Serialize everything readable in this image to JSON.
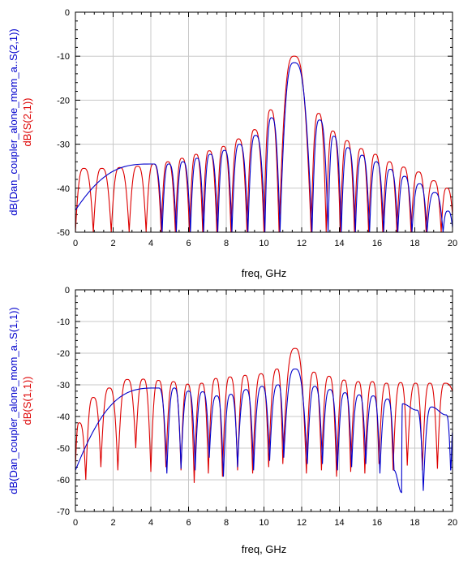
{
  "chart_data": [
    {
      "type": "line",
      "xlabel": "freq, GHz",
      "ylabels": [
        {
          "text": "dB(Dan_coupler_alone_mom_a..S(2,1))",
          "color": "#0000cc"
        },
        {
          "text": "dB(S(2,1))",
          "color": "#dd0000"
        }
      ],
      "xlim": [
        0,
        20
      ],
      "ylim": [
        -50,
        0
      ],
      "xticks": [
        0,
        2,
        4,
        6,
        8,
        10,
        12,
        14,
        16,
        18,
        20
      ],
      "yticks": [
        0,
        -10,
        -20,
        -30,
        -40,
        -50
      ],
      "grid": true,
      "series": [
        {
          "color": "#dd0000",
          "start": 0.0,
          "nulls": [
            0.0,
            0.95,
            1.9,
            2.85,
            3.75,
            4.55,
            5.3,
            6.05,
            6.75,
            7.5,
            8.25,
            9.1,
            10.0,
            10.8,
            12.5,
            13.3,
            14.05,
            14.8,
            15.55,
            16.3,
            17.05,
            17.8,
            18.6,
            19.4
          ],
          "peaks": [
            [
              0.45,
              -35.5
            ],
            [
              1.4,
              -35.5
            ],
            [
              2.35,
              -35.3
            ],
            [
              3.3,
              -35.0
            ],
            [
              4.15,
              -34.5
            ],
            [
              4.9,
              -34.0
            ],
            [
              5.65,
              -33.2
            ],
            [
              6.4,
              -32.3
            ],
            [
              7.1,
              -31.5
            ],
            [
              7.85,
              -30.5
            ],
            [
              8.65,
              -28.8
            ],
            [
              9.5,
              -26.7
            ],
            [
              10.35,
              -22.2
            ],
            [
              11.6,
              -10.0
            ],
            [
              12.9,
              -23.0
            ],
            [
              13.65,
              -27.0
            ],
            [
              14.4,
              -29.2
            ],
            [
              15.15,
              -31.0
            ],
            [
              15.9,
              -32.3
            ],
            [
              16.65,
              -34.0
            ],
            [
              17.4,
              -35.2
            ],
            [
              18.2,
              -36.3
            ],
            [
              19.0,
              -38.3
            ],
            [
              19.7,
              -40.0
            ]
          ],
          "end": -46.0
        },
        {
          "color": "#0000cc",
          "start": -45.0,
          "nulls": [
            4.6,
            5.35,
            6.1,
            6.8,
            7.55,
            8.3,
            9.15,
            10.05,
            10.85,
            12.55,
            13.4,
            14.1,
            14.85,
            15.6,
            16.35,
            17.1,
            17.85,
            18.65,
            19.5
          ],
          "peaks": [
            [
              4.15,
              -34.5
            ],
            [
              4.95,
              -34.5
            ],
            [
              5.7,
              -34.0
            ],
            [
              6.45,
              -33.2
            ],
            [
              7.15,
              -32.3
            ],
            [
              7.9,
              -31.4
            ],
            [
              8.7,
              -30.0
            ],
            [
              9.55,
              -28.0
            ],
            [
              10.4,
              -24.0
            ],
            [
              11.6,
              -11.5
            ],
            [
              12.95,
              -24.5
            ],
            [
              13.7,
              -28.2
            ],
            [
              14.45,
              -30.8
            ],
            [
              15.2,
              -32.5
            ],
            [
              15.95,
              -34.0
            ],
            [
              16.7,
              -35.7
            ],
            [
              17.45,
              -37.3
            ],
            [
              18.25,
              -39.0
            ],
            [
              19.05,
              -41.0
            ],
            [
              19.75,
              -45.2
            ]
          ],
          "end": -49.0
        }
      ]
    },
    {
      "type": "line",
      "xlabel": "freq, GHz",
      "ylabels": [
        {
          "text": "dB(Dan_coupler_alone_mom_a..S(1,1))",
          "color": "#0000cc"
        },
        {
          "text": "dB(S(1,1))",
          "color": "#dd0000"
        }
      ],
      "xlim": [
        0,
        20
      ],
      "ylim": [
        -70,
        0
      ],
      "xticks": [
        0,
        2,
        4,
        6,
        8,
        10,
        12,
        14,
        16,
        18,
        20
      ],
      "yticks": [
        0,
        -10,
        -20,
        -30,
        -40,
        -50,
        -60,
        -70
      ],
      "grid": true,
      "series": [
        {
          "color": "#dd0000",
          "start": -56.0,
          "nulls": [
            [
              0.55,
              -60.0
            ],
            [
              1.35,
              -56.0
            ],
            [
              2.25,
              -57.0
            ],
            [
              3.2,
              -50.0
            ],
            [
              4.0,
              -57.5
            ],
            [
              4.8,
              -56.0
            ],
            [
              5.6,
              -57.0
            ],
            [
              6.3,
              -61.0
            ],
            [
              7.05,
              -58.0
            ],
            [
              7.8,
              -59.0
            ],
            [
              8.6,
              -57.0
            ],
            [
              9.4,
              -58.0
            ],
            [
              10.25,
              -56.0
            ],
            [
              11.0,
              -55.0
            ],
            [
              12.25,
              -58.0
            ],
            [
              13.05,
              -57.0
            ],
            [
              13.85,
              -59.0
            ],
            [
              14.6,
              -57.5
            ],
            [
              15.35,
              -58.0
            ],
            [
              16.1,
              -55.0
            ],
            [
              16.85,
              -57.0
            ],
            [
              17.6,
              -55.5
            ],
            [
              18.4,
              -57.0
            ],
            [
              19.2,
              -56.5
            ]
          ],
          "peaks": [
            [
              0.2,
              -42.0
            ],
            [
              0.95,
              -34.0
            ],
            [
              1.8,
              -31.0
            ],
            [
              2.75,
              -28.3
            ],
            [
              3.6,
              -28.2
            ],
            [
              4.4,
              -28.6
            ],
            [
              5.2,
              -29.0
            ],
            [
              5.95,
              -29.8
            ],
            [
              6.7,
              -29.5
            ],
            [
              7.45,
              -28.0
            ],
            [
              8.2,
              -27.5
            ],
            [
              9.0,
              -27.0
            ],
            [
              9.85,
              -26.5
            ],
            [
              10.7,
              -25.0
            ],
            [
              11.65,
              -18.5
            ],
            [
              12.65,
              -26.0
            ],
            [
              13.45,
              -27.3
            ],
            [
              14.25,
              -28.5
            ],
            [
              15.0,
              -29.0
            ],
            [
              15.75,
              -29.0
            ],
            [
              16.5,
              -29.5
            ],
            [
              17.25,
              -29.3
            ],
            [
              18.05,
              -29.5
            ],
            [
              18.8,
              -29.5
            ],
            [
              19.6,
              -29.5
            ]
          ],
          "end": -32.0
        },
        {
          "color": "#0000cc",
          "start": -57.0,
          "nulls": [
            [
              4.85,
              -58.0
            ],
            [
              5.6,
              -56.5
            ],
            [
              6.35,
              -57.0
            ],
            [
              7.1,
              -53.0
            ],
            [
              7.85,
              -59.0
            ],
            [
              8.6,
              -56.0
            ],
            [
              9.45,
              -57.0
            ],
            [
              10.3,
              -54.0
            ],
            [
              11.05,
              -53.0
            ],
            [
              12.3,
              -55.0
            ],
            [
              13.1,
              -55.0
            ],
            [
              13.9,
              -57.0
            ],
            [
              14.65,
              -56.0
            ],
            [
              15.4,
              -55.0
            ],
            [
              16.15,
              -58.0
            ],
            [
              16.9,
              -57.0
            ],
            [
              17.3,
              -64.0
            ],
            [
              18.45,
              -63.5
            ],
            [
              19.9,
              -57.0
            ]
          ],
          "peaks": [
            [
              4.4,
              -31.0
            ],
            [
              5.25,
              -31.0
            ],
            [
              6.0,
              -32.0
            ],
            [
              6.75,
              -32.2
            ],
            [
              7.5,
              -33.5
            ],
            [
              8.25,
              -33.0
            ],
            [
              9.05,
              -31.5
            ],
            [
              9.9,
              -30.5
            ],
            [
              10.75,
              -30.0
            ],
            [
              11.65,
              -25.0
            ],
            [
              12.7,
              -30.5
            ],
            [
              13.5,
              -31.5
            ],
            [
              14.3,
              -32.5
            ],
            [
              15.05,
              -33.2
            ],
            [
              15.8,
              -33.5
            ],
            [
              16.55,
              -34.5
            ],
            [
              17.35,
              -36.0
            ],
            [
              18.1,
              -38.0
            ],
            [
              18.9,
              -37.0
            ],
            [
              19.65,
              -39.5
            ]
          ],
          "end": -45.0
        }
      ]
    }
  ]
}
